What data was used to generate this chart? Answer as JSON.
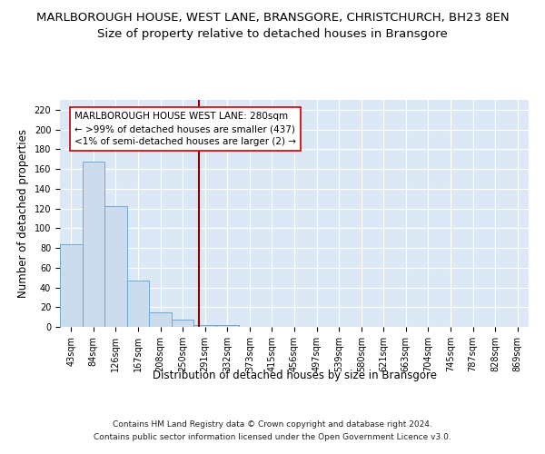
{
  "title": "MARLBOROUGH HOUSE, WEST LANE, BRANSGORE, CHRISTCHURCH, BH23 8EN",
  "subtitle": "Size of property relative to detached houses in Bransgore",
  "xlabel": "Distribution of detached houses by size in Bransgore",
  "ylabel": "Number of detached properties",
  "footer_line1": "Contains HM Land Registry data © Crown copyright and database right 2024.",
  "footer_line2": "Contains public sector information licensed under the Open Government Licence v3.0.",
  "bin_labels": [
    "43sqm",
    "84sqm",
    "126sqm",
    "167sqm",
    "208sqm",
    "250sqm",
    "291sqm",
    "332sqm",
    "373sqm",
    "415sqm",
    "456sqm",
    "497sqm",
    "539sqm",
    "580sqm",
    "621sqm",
    "663sqm",
    "704sqm",
    "745sqm",
    "787sqm",
    "828sqm",
    "869sqm"
  ],
  "bar_heights": [
    84,
    167,
    122,
    47,
    15,
    7,
    2,
    2,
    0,
    0,
    0,
    0,
    0,
    0,
    0,
    0,
    0,
    0,
    0,
    0,
    0
  ],
  "bar_color": "#ccdcec",
  "bar_edge_color": "#6aaad4",
  "background_color": "#dce8f5",
  "grid_color": "#ffffff",
  "vline_color": "#8b0000",
  "annotation_box_text": "MARLBOROUGH HOUSE WEST LANE: 280sqm\n← >99% of detached houses are smaller (437)\n<1% of semi-detached houses are larger (2) →",
  "annotation_box_color": "#cc0000",
  "annotation_box_bg": "#ffffff",
  "ylim": [
    0,
    230
  ],
  "yticks": [
    0,
    20,
    40,
    60,
    80,
    100,
    120,
    140,
    160,
    180,
    200,
    220
  ],
  "title_fontsize": 9.5,
  "subtitle_fontsize": 9.5,
  "axis_label_fontsize": 8.5,
  "tick_fontsize": 7,
  "annotation_fontsize": 7.5,
  "footer_fontsize": 6.5
}
